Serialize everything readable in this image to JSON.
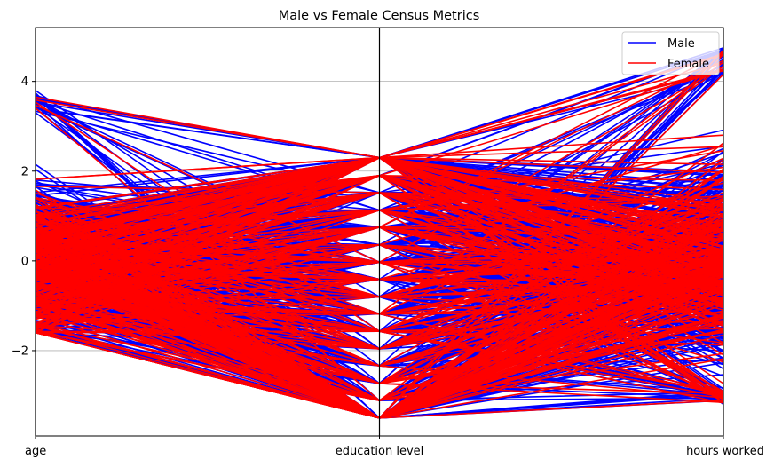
{
  "chart_data": {
    "type": "parallel_coordinates",
    "title": "Male vs Female Census Metrics",
    "axes": [
      "age",
      "education level",
      "hours worked"
    ],
    "ylim": [
      -3.9,
      5.2
    ],
    "yticks": [
      {
        "value": -2,
        "label": "−2"
      },
      {
        "value": 0,
        "label": "0"
      },
      {
        "value": 2,
        "label": "2"
      },
      {
        "value": 4,
        "label": "4"
      }
    ],
    "grid": "horizontal",
    "legend_position": "top-right",
    "value_ranges": {
      "age": [
        -1.6,
        3.8
      ],
      "education level": [
        -3.5,
        2.3
      ],
      "hours worked": [
        -3.2,
        4.75
      ]
    },
    "education_levels": [
      -3.5,
      -3.11,
      -2.73,
      -2.34,
      -1.96,
      -1.57,
      -1.18,
      -0.8,
      -0.41,
      -0.03,
      0.36,
      0.75,
      1.13,
      1.52,
      1.9,
      2.3
    ],
    "series": [
      {
        "name": "Male",
        "color": "#0000ff"
      },
      {
        "name": "Female",
        "color": "#ff0000"
      }
    ]
  }
}
